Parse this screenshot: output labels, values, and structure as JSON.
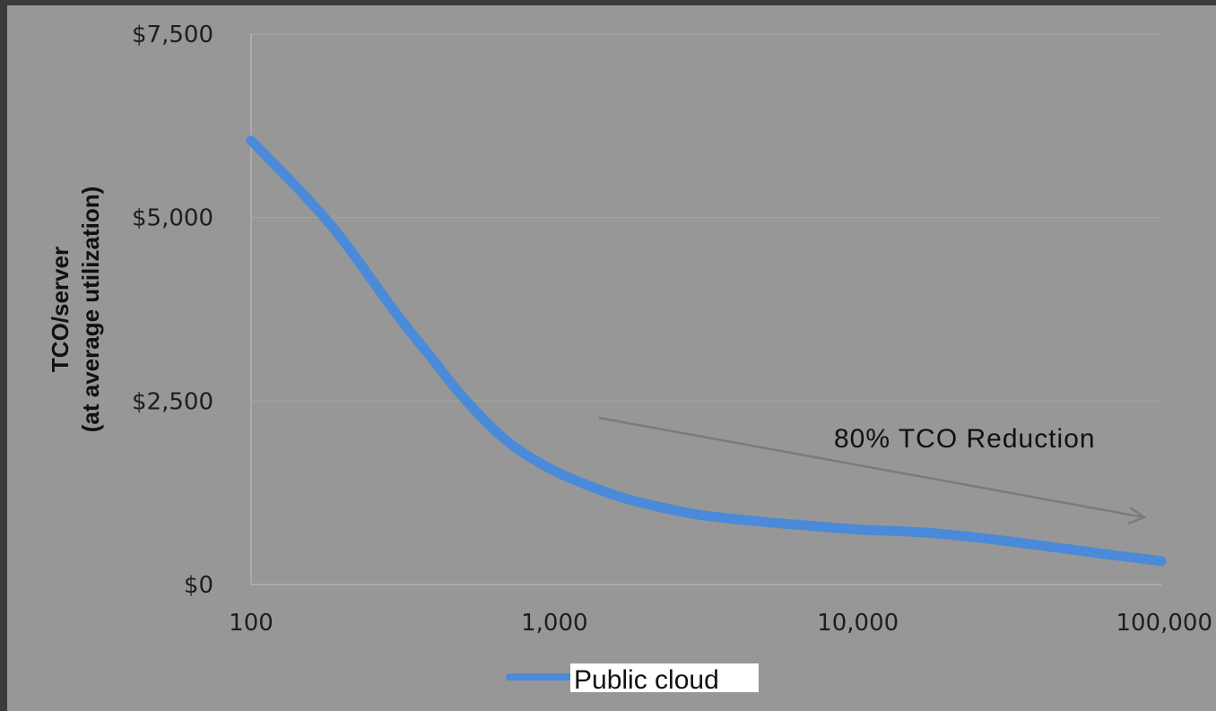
{
  "chart_data": {
    "type": "line",
    "ylabel_line1": "TCO/server",
    "ylabel_line2": "(at average utilization)",
    "x_scale": "log",
    "xlim": [
      100,
      100000
    ],
    "ylim": [
      0,
      7500
    ],
    "x_ticks": [
      "100",
      "1,000",
      "10,000",
      "100,000"
    ],
    "x_tick_values": [
      100,
      1000,
      10000,
      100000
    ],
    "y_ticks": [
      "$0",
      "$2,500",
      "$5,000",
      "$7,500"
    ],
    "y_tick_values": [
      0,
      2500,
      5000,
      7500
    ],
    "grid": true,
    "legend_position": "bottom",
    "annotation": "80% TCO Reduction",
    "series": [
      {
        "name": "Public cloud",
        "color": "#4a8ad8",
        "x": [
          100,
          150,
          200,
          300,
          400,
          500,
          700,
          1000,
          1500,
          2000,
          3000,
          5000,
          7000,
          10000,
          15000,
          20000,
          30000,
          50000,
          70000,
          100000
        ],
        "y": [
          6050,
          5300,
          4700,
          3700,
          3050,
          2550,
          1950,
          1550,
          1250,
          1100,
          950,
          850,
          800,
          750,
          720,
          680,
          600,
          480,
          400,
          320
        ]
      }
    ]
  }
}
